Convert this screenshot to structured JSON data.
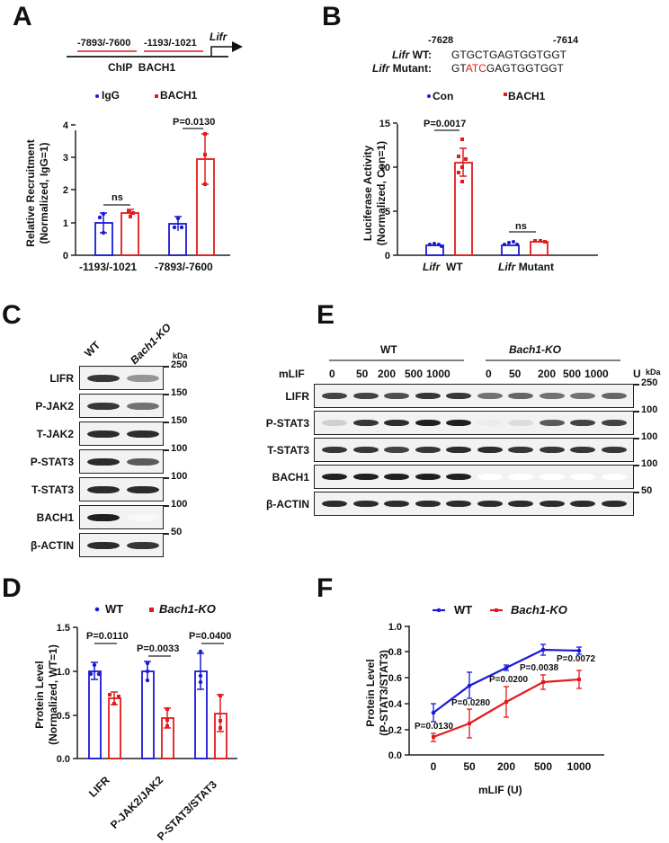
{
  "panels": {
    "A": {
      "letter": "A",
      "gene_label": "Lifr",
      "regions": [
        "-7893/-7600",
        "-1193/-1021"
      ],
      "chip_label": "ChIP  BACH1",
      "legend": [
        {
          "name": "IgG",
          "color": "#1a1ad6"
        },
        {
          "name": "BACH1",
          "color": "#e31a1c"
        }
      ],
      "significance": [
        "ns",
        "P=0.0130"
      ]
    },
    "B": {
      "letter": "B",
      "pos_start": "-7628",
      "pos_end": "-7614",
      "wt_label_italic": "Lifr",
      "wt_label": " WT:",
      "wt_seq": "GTGCTGAGTGGTGGT",
      "mut_label_italic": "Lifr",
      "mut_label": " Mutant:",
      "mut_seq_prefix": "GT",
      "mut_seq_mutated": "ATC",
      "mut_seq_suffix": "GAGTGGTGGT",
      "legend": [
        {
          "name": "Con",
          "color": "#1a1ad6"
        },
        {
          "name": "BACH1",
          "color": "#e31a1c"
        }
      ],
      "significance": [
        "P=0.0017",
        "ns"
      ],
      "x_groups": [
        {
          "italic": "Lifr",
          "text": "WT"
        },
        {
          "italic": "Lifr",
          "text": "Mutant"
        }
      ]
    },
    "C": {
      "letter": "C",
      "lanes": [
        "WT",
        "Bach1-KO"
      ],
      "kda_label": "kDa",
      "rows": [
        {
          "name": "LIFR",
          "marker": "250",
          "intensity": [
            0.85,
            0.45
          ]
        },
        {
          "name": "P-JAK2",
          "marker": "150",
          "intensity": [
            0.85,
            0.6
          ]
        },
        {
          "name": "T-JAK2",
          "marker": "150",
          "intensity": [
            0.9,
            0.9
          ]
        },
        {
          "name": "P-STAT3",
          "marker": "100",
          "intensity": [
            0.9,
            0.7
          ]
        },
        {
          "name": "T-STAT3",
          "marker": "100",
          "intensity": [
            0.9,
            0.9
          ]
        },
        {
          "name": "BACH1",
          "marker": "100",
          "intensity": [
            0.95,
            0.03
          ]
        },
        {
          "name": "β-ACTIN",
          "marker": "50",
          "intensity": [
            0.9,
            0.85
          ]
        }
      ]
    },
    "E": {
      "letter": "E",
      "groups": [
        "WT",
        "Bach1-KO"
      ],
      "treatment_label": "mLIF",
      "doses": [
        "0",
        "50",
        "200",
        "500",
        "1000",
        "0",
        "50",
        "200",
        "500",
        "1000"
      ],
      "unit": "U",
      "kda_label": "kDa",
      "rows": [
        {
          "name": "LIFR",
          "marker": "250",
          "intensity": [
            0.8,
            0.8,
            0.75,
            0.85,
            0.85,
            0.6,
            0.65,
            0.6,
            0.6,
            0.65
          ]
        },
        {
          "name": "P-STAT3",
          "marker": "100",
          "intensity": [
            0.2,
            0.85,
            0.9,
            0.95,
            0.95,
            0.08,
            0.15,
            0.7,
            0.8,
            0.8
          ]
        },
        {
          "name": "T-STAT3",
          "marker": "100",
          "intensity": [
            0.85,
            0.85,
            0.8,
            0.85,
            0.9,
            0.9,
            0.85,
            0.85,
            0.85,
            0.85
          ]
        },
        {
          "name": "BACH1",
          "marker": "100",
          "intensity": [
            0.95,
            0.95,
            0.95,
            0.95,
            0.95,
            0,
            0,
            0,
            0,
            0
          ]
        },
        {
          "name": "β-ACTIN",
          "marker": "50",
          "intensity": [
            0.9,
            0.9,
            0.9,
            0.9,
            0.9,
            0.9,
            0.9,
            0.9,
            0.9,
            0.9
          ]
        }
      ]
    },
    "D": {
      "letter": "D"
    },
    "F": {
      "letter": "F"
    }
  },
  "chart_data": [
    {
      "panel": "A",
      "type": "bar",
      "title": "",
      "categories": [
        "-1193/-1021",
        "-7893/-7600"
      ],
      "series": [
        {
          "name": "IgG",
          "color": "#1a1ad6",
          "values": [
            1.0,
            0.98
          ],
          "error": [
            0.3,
            0.22
          ],
          "points": [
            [
              1.3,
              0.9,
              0.7
            ],
            [
              1.2,
              0.9,
              0.85
            ]
          ]
        },
        {
          "name": "BACH1",
          "color": "#e31a1c",
          "values": [
            1.27,
            2.95
          ],
          "error": [
            0.1,
            0.77
          ],
          "points": [
            [
              1.35,
              1.2,
              1.3
            ],
            [
              3.7,
              3.05,
              2.15
            ]
          ]
        }
      ],
      "xlabel": "",
      "ylabel": "Relative Recruitment\n(Normalized, IgG=1)",
      "ylim": [
        0,
        4
      ],
      "yticks": [
        0,
        1,
        2,
        3,
        4
      ],
      "annotations": [
        {
          "text": "ns",
          "between": "-1193/-1021"
        },
        {
          "text": "P=0.0130",
          "between": "-7893/-7600"
        }
      ],
      "legend_position": "top"
    },
    {
      "panel": "B",
      "type": "bar",
      "categories": [
        "Lifr WT",
        "Lifr Mutant"
      ],
      "series": [
        {
          "name": "Con",
          "color": "#1a1ad6",
          "values": [
            1.0,
            1.1
          ],
          "error": [
            0.1,
            0.3
          ]
        },
        {
          "name": "BACH1",
          "color": "#e31a1c",
          "values": [
            10.5,
            1.5
          ],
          "error": [
            1.6,
            0.15
          ],
          "points": [
            [
              13.0,
              11.5,
              11.0,
              10.5,
              9.5,
              8.3
            ],
            [
              1.5,
              1.5,
              1.4,
              1.6,
              1.5,
              1.5
            ]
          ]
        }
      ],
      "ylabel": "Luciferase Activity\n(Normalized, Con=1)",
      "ylim": [
        0,
        15
      ],
      "yticks": [
        0,
        5,
        10,
        15
      ],
      "annotations": [
        {
          "text": "P=0.0017",
          "between": "Lifr WT"
        },
        {
          "text": "ns",
          "between": "Lifr Mutant"
        }
      ],
      "legend_position": "top"
    },
    {
      "panel": "D",
      "type": "bar",
      "categories": [
        "LIFR",
        "P-JAK2/JAK2",
        "P-STAT3/STAT3"
      ],
      "series": [
        {
          "name": "WT",
          "color": "#1a1ad6",
          "values": [
            1.0,
            1.0,
            1.0
          ],
          "error": [
            0.1,
            0.11,
            0.2
          ],
          "points": [
            [
              1.07,
              0.97,
              0.97
            ],
            [
              1.1,
              1.0,
              0.9
            ],
            [
              1.23,
              0.95,
              0.88
            ]
          ]
        },
        {
          "name": "Bach1-KO",
          "color": "#e31a1c",
          "values": [
            0.69,
            0.46,
            0.52
          ],
          "error": [
            0.07,
            0.11,
            0.21
          ],
          "points": [
            [
              0.73,
              0.68,
              0.6
            ],
            [
              0.57,
              0.44,
              0.37
            ],
            [
              0.73,
              0.43,
              0.36
            ]
          ]
        }
      ],
      "ylabel": "Protein Level\n(Normalized, WT=1)",
      "ylim": [
        0,
        1.5
      ],
      "yticks": [
        0.0,
        0.5,
        1.0,
        1.5
      ],
      "annotations": [
        {
          "text": "P=0.0110",
          "group": "LIFR"
        },
        {
          "text": "P=0.0033",
          "group": "P-JAK2/JAK2"
        },
        {
          "text": "P=0.0400",
          "group": "P-STAT3/STAT3"
        }
      ],
      "legend_position": "top"
    },
    {
      "panel": "F",
      "type": "line",
      "x": [
        "0",
        "50",
        "200",
        "500",
        "1000"
      ],
      "series": [
        {
          "name": "WT",
          "color": "#1a1ad6",
          "values": [
            0.33,
            0.54,
            0.68,
            0.81,
            0.8
          ],
          "error": [
            0.07,
            0.1,
            0.02,
            0.04,
            0.03
          ]
        },
        {
          "name": "Bach1-KO",
          "color": "#e31a1c",
          "values": [
            0.14,
            0.25,
            0.42,
            0.57,
            0.59
          ],
          "error": [
            0.03,
            0.11,
            0.12,
            0.06,
            0.07
          ]
        }
      ],
      "xlabel": "mLIF (U)",
      "ylabel": "Protein Level\n(P-STAT3/STAT3)",
      "ylim": [
        0,
        1.0
      ],
      "yticks": [
        0.0,
        0.2,
        0.4,
        0.6,
        0.8,
        1.0
      ],
      "annotations": [
        "P=0.0130",
        "P=0.0280",
        "P=0.0200",
        "P=0.0038",
        "P=0.0072"
      ],
      "legend_position": "top"
    }
  ]
}
